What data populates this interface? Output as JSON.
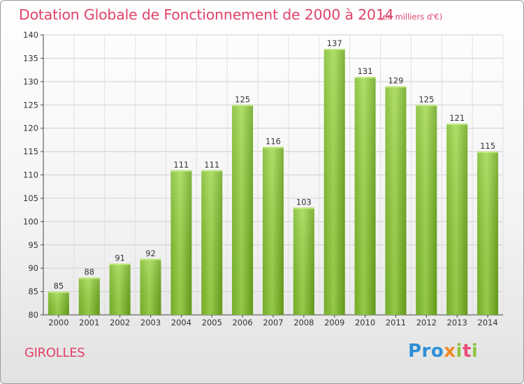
{
  "title": "Dotation Globale de Fonctionnement de 2000 à 2014",
  "subtitle": "(en milliers d'€)",
  "commune": "GIROLLES",
  "logo": "Proxiti",
  "colors": {
    "title": "#e0426a",
    "bar_light": "#a8dc5a",
    "bar_dark": "#6aaa1e",
    "axis": "#333333",
    "grid": "#cccccc"
  },
  "chart_data": {
    "type": "bar",
    "categories": [
      "2000",
      "2001",
      "2002",
      "2003",
      "2004",
      "2005",
      "2006",
      "2007",
      "2008",
      "2009",
      "2010",
      "2011",
      "2012",
      "2013",
      "2014"
    ],
    "values": [
      85,
      88,
      91,
      92,
      111,
      111,
      125,
      116,
      103,
      137,
      131,
      129,
      125,
      121,
      115
    ],
    "data_labels": [
      "85",
      "88",
      "91",
      "92",
      "111",
      "111",
      "125",
      "116",
      "103",
      "137",
      "131",
      "129",
      "125",
      "121",
      "115"
    ],
    "ylim": [
      80,
      140
    ],
    "yticks": [
      80,
      85,
      90,
      95,
      100,
      105,
      110,
      115,
      120,
      125,
      130,
      135,
      140
    ],
    "grid": true
  }
}
